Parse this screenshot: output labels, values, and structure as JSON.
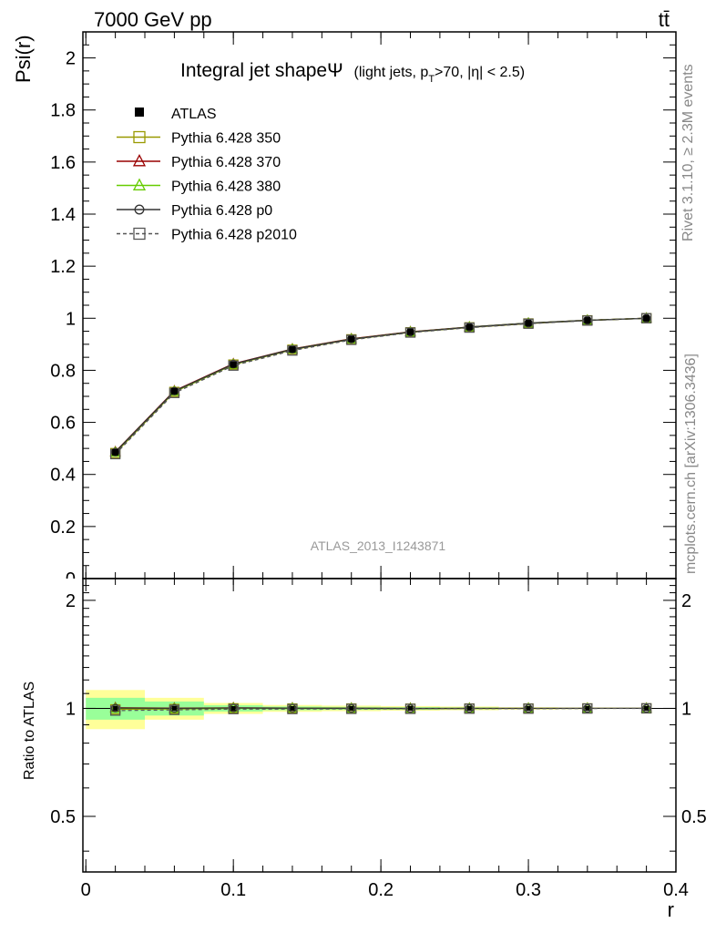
{
  "header": {
    "left": "7000 GeV pp",
    "right": "tt̄"
  },
  "side_text": {
    "top": "Rivet 3.1.10, ≥ 2.3M events",
    "bottom": "mcplots.cern.ch [arXiv:1306.3436]"
  },
  "watermark": "ATLAS_2013_I1243871",
  "chart_data": {
    "type": "line",
    "title_main": "Integral jet shape",
    "title_symbol": "Ψ",
    "title_sub_1": "(light jets, p",
    "title_sub_T": "T",
    "title_sub_2": ">70, |η| < 2.5)",
    "ylabel": "Psi(r)",
    "ratio_ylabel": "Ratio to ATLAS",
    "xlabel": "r",
    "xlim": [
      -0.002,
      0.4
    ],
    "ylim": [
      0,
      2.1
    ],
    "ratio_ylim": [
      0.35,
      2.3
    ],
    "x_ticks": [
      "0",
      "0.1",
      "0.2",
      "0.3",
      "0.4"
    ],
    "y_ticks": [
      "0.2",
      "0.4",
      "0.6",
      "0.8",
      "1",
      "1.2",
      "1.4",
      "1.6",
      "1.8",
      "2"
    ],
    "y_tick_clipped": "0",
    "ratio_ticks": [
      "0.5",
      "1",
      "2"
    ],
    "x": [
      0.02,
      0.06,
      0.1,
      0.14,
      0.18,
      0.22,
      0.26,
      0.3,
      0.34,
      0.38
    ],
    "bin_edges": [
      0.0,
      0.04,
      0.08,
      0.12,
      0.16,
      0.2,
      0.24,
      0.28,
      0.32,
      0.36,
      0.4
    ],
    "data": {
      "name": "ATLAS",
      "values": [
        0.485,
        0.72,
        0.822,
        0.88,
        0.92,
        0.948,
        0.966,
        0.981,
        0.992,
        1.0
      ]
    },
    "series": [
      {
        "name": "Pythia 6.428 350",
        "color": "#999900",
        "marker": "square",
        "dash": false,
        "values": [
          0.482,
          0.717,
          0.822,
          0.879,
          0.919,
          0.946,
          0.965,
          0.98,
          0.992,
          1.0
        ]
      },
      {
        "name": "Pythia 6.428 370",
        "color": "#990000",
        "marker": "triangle",
        "dash": false,
        "values": [
          0.487,
          0.721,
          0.825,
          0.882,
          0.921,
          0.948,
          0.966,
          0.981,
          0.992,
          1.0
        ]
      },
      {
        "name": "Pythia 6.428 380",
        "color": "#66cc00",
        "marker": "triangle",
        "dash": false,
        "values": [
          0.485,
          0.719,
          0.823,
          0.881,
          0.92,
          0.947,
          0.966,
          0.981,
          0.992,
          1.0
        ]
      },
      {
        "name": "Pythia 6.428 p0",
        "color": "#333333",
        "marker": "circle",
        "dash": false,
        "values": [
          0.486,
          0.72,
          0.824,
          0.881,
          0.92,
          0.947,
          0.966,
          0.981,
          0.992,
          1.0
        ]
      },
      {
        "name": "Pythia 6.428 p2010",
        "color": "#555555",
        "marker": "square",
        "dash": true,
        "values": [
          0.478,
          0.713,
          0.818,
          0.876,
          0.917,
          0.945,
          0.964,
          0.979,
          0.991,
          1.0
        ]
      }
    ],
    "ratio_bands": {
      "inner_color": "#99ff99",
      "outer_color": "#ffff99",
      "inner_halfwidth": [
        0.07,
        0.045,
        0.02,
        0.012,
        0.01,
        0.008,
        0.006,
        0.003,
        0.002,
        0.0
      ],
      "outer_halfwidth": [
        0.125,
        0.07,
        0.035,
        0.022,
        0.018,
        0.015,
        0.012,
        0.007,
        0.004,
        0.0
      ]
    }
  }
}
